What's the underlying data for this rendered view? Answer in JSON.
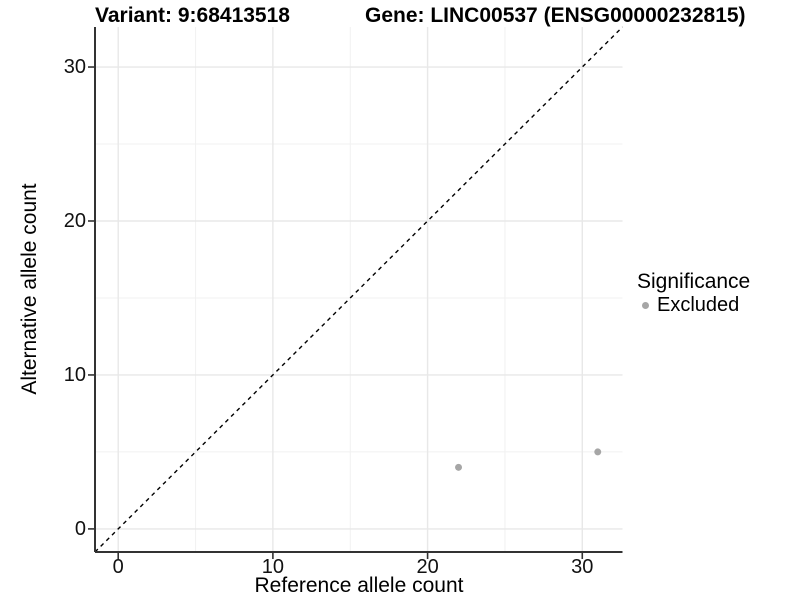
{
  "header": {
    "variant_title": "Variant: 9:68413518",
    "gene_title": "Gene: LINC00537 (ENSG00000232815)"
  },
  "legend": {
    "title": "Significance",
    "items": [
      {
        "label": "Excluded",
        "color": "#a6a6a6",
        "marker": "circle"
      }
    ]
  },
  "chart_data": {
    "type": "scatter",
    "titles": [
      "Variant: 9:68413518",
      "Gene: LINC00537 (ENSG00000232815)"
    ],
    "xlabel": "Reference allele count",
    "ylabel": "Alternative allele count",
    "xlim": [
      -1.5,
      32.6
    ],
    "ylim": [
      -1.5,
      32.6
    ],
    "x_ticks": [
      0,
      10,
      20,
      30
    ],
    "y_ticks": [
      0,
      10,
      20,
      30
    ],
    "x_minor_ticks": [
      5,
      15,
      25
    ],
    "y_minor_ticks": [
      5,
      15,
      25
    ],
    "grid": "major+minor",
    "legend_position": "right",
    "series": [
      {
        "name": "Excluded",
        "color": "#a6a6a6",
        "marker": "circle",
        "points": [
          {
            "x": 22,
            "y": 4
          },
          {
            "x": 31,
            "y": 5
          }
        ]
      }
    ],
    "reference_line": {
      "slope": 1,
      "intercept": 0,
      "style": "dashed",
      "color": "#000000"
    }
  },
  "style": {
    "background": "#ffffff",
    "grid_major_color": "#e8e8e8",
    "grid_minor_color": "#f1f1f1",
    "axis_color": "#333333",
    "text_color": "#000000",
    "point_radius": 3.5
  }
}
